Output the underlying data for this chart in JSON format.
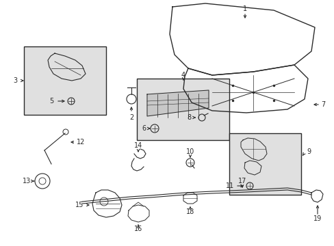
{
  "bg_color": "#ffffff",
  "line_color": "#2a2a2a",
  "box_fill": "#e0e0e0",
  "figsize": [
    4.89,
    3.6
  ],
  "dpi": 100
}
